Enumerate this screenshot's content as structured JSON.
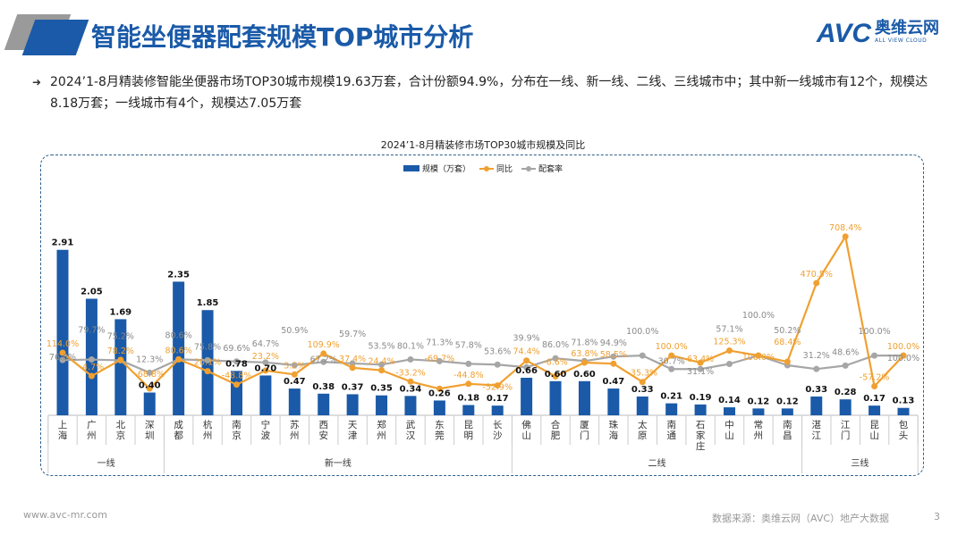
{
  "header": {
    "title": "智能坐便器配套规模TOP城市分析",
    "logo_text": "AVC",
    "logo_cn": "奥维云网",
    "logo_en": "ALL VIEW CLOUD"
  },
  "bullet": {
    "icon": "double-arrow-icon",
    "text": "2024’1-8月精装修智能坐便器市场TOP30城市规模19.63万套，合计份额94.9%，分布在一线、新一线、二线、三线城市中；其中新一线城市有12个，规模达8.18万套；一线城市有4个，规模达7.05万套"
  },
  "chart_data": {
    "type": "bar",
    "title": "2024’1-8月精装修市场TOP30城市规模及同比",
    "legend": [
      "规模（万套）",
      "同比",
      "配套率"
    ],
    "legend_position": "top",
    "categories": [
      "上海",
      "广州",
      "北京",
      "深圳",
      "成都",
      "杭州",
      "南京",
      "宁波",
      "苏州",
      "西安",
      "天津",
      "郑州",
      "武汉",
      "东莞",
      "昆明",
      "长沙",
      "佛山",
      "合肥",
      "厦门",
      "珠海",
      "太原",
      "南通",
      "石家庄",
      "中山",
      "常州",
      "南昌",
      "湛江",
      "江门",
      "昆山",
      "包头"
    ],
    "groups": [
      {
        "label": "一线",
        "count": 4
      },
      {
        "label": "新一线",
        "count": 12
      },
      {
        "label": "二线",
        "count": 10
      },
      {
        "label": "三线",
        "count": 4
      }
    ],
    "series": [
      {
        "name": "规模（万套）",
        "type": "bar",
        "color": "#1a5aa8",
        "values": [
          2.91,
          2.05,
          1.69,
          0.4,
          2.35,
          1.85,
          0.78,
          0.7,
          0.47,
          0.38,
          0.37,
          0.35,
          0.34,
          0.26,
          0.18,
          0.17,
          0.66,
          0.6,
          0.6,
          0.47,
          0.33,
          0.21,
          0.19,
          0.14,
          0.12,
          0.12,
          0.33,
          0.28,
          0.17,
          0.13
        ],
        "labels": [
          "2.91",
          "2.05",
          "1.69",
          "0.40",
          "2.35",
          "1.85",
          "0.78",
          "0.70",
          "0.47",
          "0.38",
          "0.37",
          "0.35",
          "0.34",
          "0.26",
          "0.18",
          "0.17",
          "0.66",
          "0.60",
          "0.60",
          "0.47",
          "0.33",
          "0.21",
          "0.19",
          "0.14",
          "0.12",
          "0.12",
          "0.33",
          "0.28",
          "0.17",
          "0.13"
        ]
      },
      {
        "name": "同比",
        "type": "line",
        "color": "#f0a030",
        "values": [
          114.0,
          -4.7,
          78.2,
          -68.8,
          80.6,
          20.1,
          -48.8,
          23.2,
          3.2,
          109.9,
          37.4,
          24.4,
          -33.2,
          -69.7,
          -44.8,
          -52.9,
          74.4,
          -6.6,
          63.8,
          58.5,
          -35.3,
          100.0,
          63.4,
          125.3,
          100.0,
          68.4,
          470.5,
          708.4,
          -57.2,
          100.0
        ],
        "labels": [
          "114.0%",
          "-4.7%",
          "78.2%",
          "-68.8%",
          "80.6%",
          "20.1%",
          "-48.8%",
          "23.2%",
          "3.2%",
          "109.9%",
          "37.4%",
          "24.4%",
          "-33.2%",
          "-69.7%",
          "-44.8%",
          "-52.9%",
          "74.4%",
          "-6.6%",
          "63.8%",
          "58.5%",
          "-35.3%",
          "100.0%",
          "63.4%",
          "125.3%",
          "100.0%",
          "68.4%",
          "470.5%",
          "708.4%",
          "-57.2%",
          "100.0%"
        ]
      },
      {
        "name": "配套率",
        "type": "line",
        "color": "#a6a6a6",
        "values": [
          76.8,
          79.7,
          75.2,
          12.3,
          80.6,
          75.8,
          69.6,
          64.7,
          50.9,
          67.2,
          59.7,
          53.5,
          80.1,
          71.3,
          57.8,
          53.6,
          39.9,
          86.0,
          71.8,
          94.9,
          100.0,
          30.7,
          31.1,
          57.1,
          100.0,
          50.2,
          31.2,
          48.6,
          100.0,
          100.0
        ],
        "labels": [
          "76.8%",
          "79.7%",
          "75.2%",
          "12.3%",
          "80.6%",
          "75.8%",
          "69.6%",
          "64.7%",
          "50.9%",
          "67.2%",
          "59.7%",
          "53.5%",
          "80.1%",
          "71.3%",
          "57.8%",
          "53.6%",
          "39.9%",
          "86.0%",
          "71.8%",
          "94.9%",
          "100.0%",
          "30.7%",
          "31.1%",
          "57.1%",
          "100.0%",
          "50.2%",
          "31.2%",
          "48.6%",
          "100.0%",
          "100.0%"
        ]
      }
    ],
    "ylim_bar": [
      0,
      3
    ],
    "ylim_line": [
      -200,
      800
    ],
    "grid": false
  },
  "footer": {
    "website": "www.avc-mr.com",
    "source": "数据来源：奥维云网（AVC）地产大数据",
    "page": "3"
  }
}
